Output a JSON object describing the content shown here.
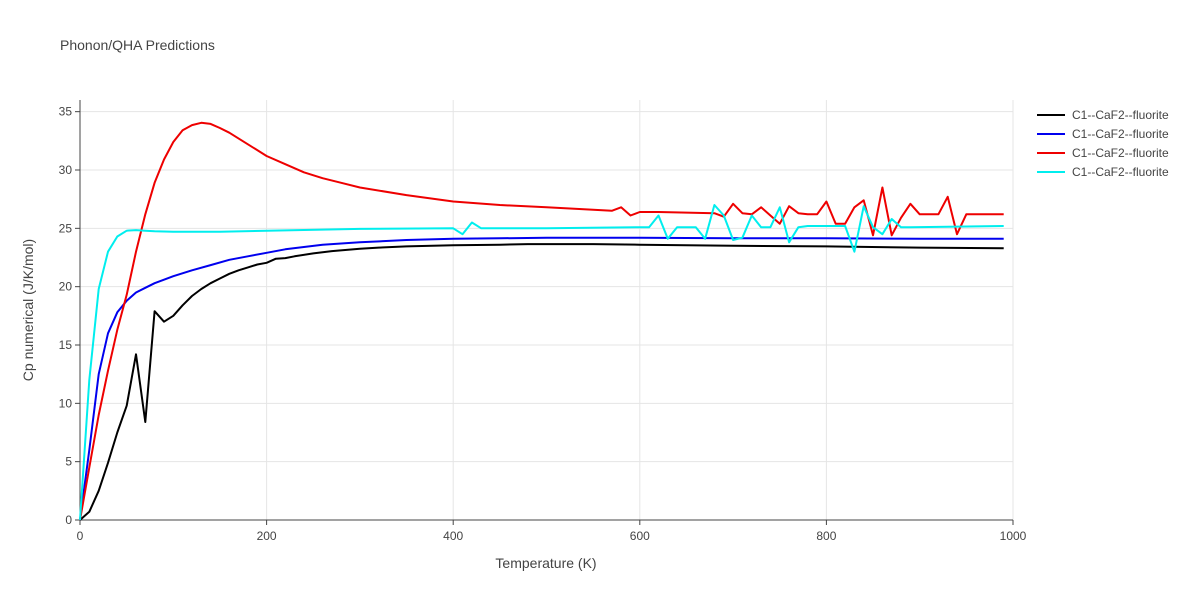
{
  "chart_data": {
    "type": "line",
    "title": "Phonon/QHA Predictions",
    "xlabel": "Temperature (K)",
    "ylabel": "Cp numerical (J/K/mol)",
    "xlim": [
      0,
      1000
    ],
    "ylim": [
      0,
      36
    ],
    "xticks": [
      0,
      200,
      400,
      600,
      800,
      1000
    ],
    "yticks": [
      0,
      5,
      10,
      15,
      20,
      25,
      30,
      35
    ],
    "grid": true,
    "legend_position": "top-right",
    "series": [
      {
        "name": "C1--CaF2--fluorite",
        "color": "#000000",
        "x": [
          0,
          10,
          20,
          30,
          40,
          50,
          60,
          70,
          80,
          90,
          100,
          110,
          120,
          130,
          140,
          150,
          160,
          170,
          180,
          190,
          200,
          210,
          220,
          230,
          250,
          270,
          300,
          320,
          350,
          400,
          450,
          480,
          500,
          550,
          600,
          700,
          800,
          900,
          990
        ],
        "y": [
          0,
          0.7,
          2.5,
          4.9,
          7.5,
          9.8,
          14.2,
          8.4,
          17.9,
          17.0,
          17.5,
          18.4,
          19.2,
          19.8,
          20.3,
          20.7,
          21.1,
          21.4,
          21.65,
          21.9,
          22.05,
          22.4,
          22.45,
          22.6,
          22.85,
          23.05,
          23.25,
          23.35,
          23.45,
          23.55,
          23.6,
          23.65,
          23.65,
          23.65,
          23.6,
          23.5,
          23.45,
          23.35,
          23.3
        ]
      },
      {
        "name": "C1--CaF2--fluorite",
        "color": "#0000ee",
        "x": [
          0,
          10,
          20,
          30,
          40,
          50,
          60,
          70,
          80,
          90,
          100,
          120,
          140,
          160,
          180,
          200,
          220,
          240,
          260,
          280,
          300,
          350,
          400,
          450,
          500,
          600,
          700,
          800,
          900,
          990
        ],
        "y": [
          0,
          6.0,
          12.5,
          16.0,
          17.8,
          18.8,
          19.5,
          19.9,
          20.3,
          20.6,
          20.9,
          21.4,
          21.85,
          22.3,
          22.6,
          22.9,
          23.2,
          23.4,
          23.6,
          23.7,
          23.8,
          24.0,
          24.1,
          24.15,
          24.2,
          24.2,
          24.15,
          24.15,
          24.1,
          24.1
        ]
      },
      {
        "name": "C1--CaF2--fluorite",
        "color": "#ee0000",
        "x": [
          0,
          10,
          20,
          30,
          40,
          50,
          60,
          70,
          80,
          90,
          100,
          110,
          120,
          130,
          140,
          150,
          160,
          180,
          200,
          220,
          240,
          260,
          280,
          300,
          350,
          400,
          450,
          500,
          550,
          570,
          580,
          590,
          600,
          610,
          620,
          680,
          690,
          700,
          710,
          720,
          730,
          740,
          750,
          760,
          770,
          780,
          790,
          800,
          810,
          820,
          830,
          840,
          850,
          860,
          870,
          880,
          890,
          900,
          910,
          920,
          930,
          940,
          950,
          960,
          990
        ],
        "y": [
          0,
          4.5,
          9.0,
          12.8,
          16.3,
          19.3,
          23.0,
          26.2,
          28.9,
          30.9,
          32.4,
          33.4,
          33.85,
          34.05,
          33.95,
          33.6,
          33.2,
          32.2,
          31.2,
          30.5,
          29.8,
          29.3,
          28.9,
          28.5,
          27.85,
          27.3,
          27.0,
          26.8,
          26.6,
          26.5,
          26.8,
          26.1,
          26.4,
          26.4,
          26.4,
          26.3,
          26.0,
          27.1,
          26.3,
          26.2,
          26.8,
          26.1,
          25.4,
          26.9,
          26.3,
          26.2,
          26.2,
          27.3,
          25.4,
          25.4,
          26.8,
          27.4,
          24.4,
          28.5,
          24.4,
          25.9,
          27.1,
          26.2,
          26.2,
          26.2,
          27.7,
          24.5,
          26.2,
          26.2,
          26.2
        ]
      },
      {
        "name": "C1--CaF2--fluorite",
        "color": "#00eeee",
        "x": [
          0,
          10,
          20,
          30,
          40,
          50,
          60,
          70,
          80,
          100,
          150,
          200,
          300,
          400,
          410,
          420,
          430,
          500,
          600,
          610,
          620,
          630,
          640,
          650,
          660,
          670,
          680,
          690,
          700,
          710,
          720,
          730,
          740,
          750,
          760,
          770,
          780,
          820,
          830,
          840,
          850,
          860,
          870,
          880,
          890,
          990
        ],
        "y": [
          0,
          12.0,
          19.8,
          23.0,
          24.3,
          24.8,
          24.85,
          24.8,
          24.75,
          24.7,
          24.7,
          24.8,
          24.95,
          25.0,
          24.5,
          25.5,
          25.0,
          25.0,
          25.1,
          25.1,
          26.1,
          24.1,
          25.1,
          25.1,
          25.1,
          24.1,
          27.0,
          26.1,
          24.0,
          24.2,
          26.1,
          25.1,
          25.1,
          26.8,
          23.8,
          25.1,
          25.2,
          25.2,
          23.0,
          26.9,
          25.1,
          24.5,
          25.8,
          25.1,
          25.1,
          25.2
        ]
      }
    ]
  }
}
